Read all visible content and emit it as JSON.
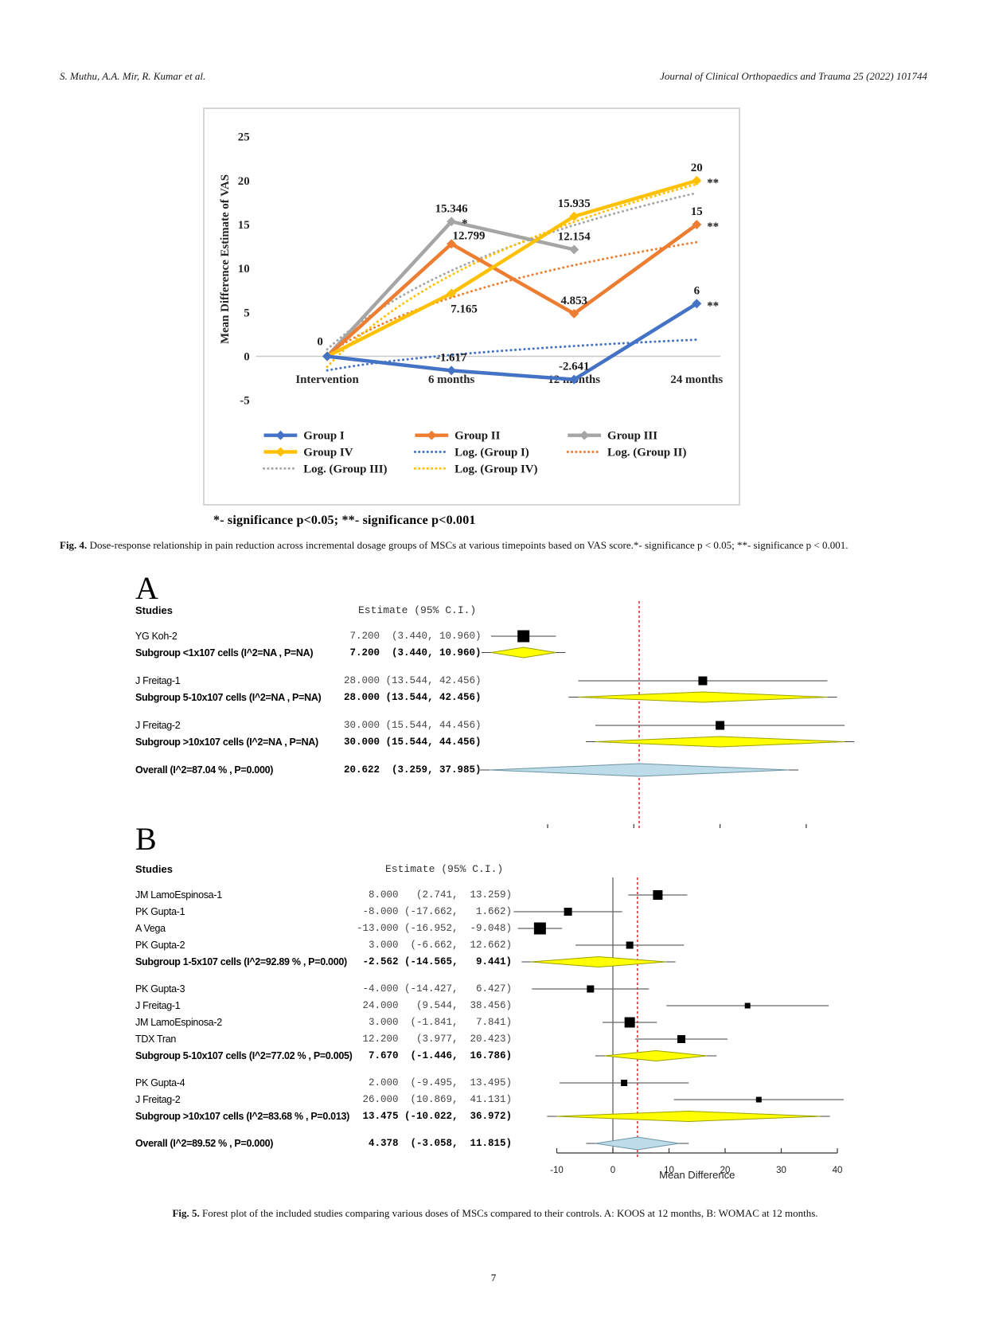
{
  "page": {
    "header_left": "S. Muthu, A.A. Mir, R. Kumar et al.",
    "header_right": "Journal of Clinical Orthopaedics and Trauma 25 (2022) 101744",
    "significance_note": "*- significance p<0.05; **- significance p<0.001",
    "fig4_caption_label": "Fig. 4.",
    "fig4_caption": " Dose-response relationship in pain reduction across incremental dosage groups of MSCs at various timepoints based on VAS score.*- significance p < 0.05; **- significance p < 0.001.",
    "fig5_caption_label": "Fig. 5.",
    "fig5_caption": " Forest plot of the included studies comparing various doses of MSCs compared to their controls. A: KOOS at 12 months, B: WOMAC at 12 months.",
    "page_number": "7"
  },
  "chart_data": [
    {
      "type": "line",
      "title": "",
      "ylabel": "Mean Difference Estimate of VAS",
      "categories": [
        "Intervention",
        "6 months",
        "12 months",
        "24 months"
      ],
      "ylim": [
        -5,
        25
      ],
      "yticks": [
        25,
        20,
        15,
        10,
        5,
        0,
        -5
      ],
      "grid": "zero-line-only",
      "legend_position": "bottom-inside",
      "series": [
        {
          "name": "Group I",
          "color": "#4472C4",
          "dash": false,
          "values": [
            0,
            -1.617,
            -2.641,
            6
          ],
          "point_labels": [
            {
              "text": "0",
              "pos": "above-left"
            },
            {
              "text": "-1.617",
              "pos": "above"
            },
            {
              "text": "-2.641",
              "pos": "above"
            },
            {
              "text": "6",
              "pos": "above",
              "sig": "**"
            }
          ]
        },
        {
          "name": "Group II",
          "color": "#ED7D31",
          "dash": false,
          "values": [
            0,
            12.799,
            4.853,
            15
          ],
          "point_labels": [
            null,
            {
              "text": "12.799",
              "pos": "above-right"
            },
            {
              "text": "4.853",
              "pos": "above"
            },
            {
              "text": "15",
              "pos": "above",
              "sig": "**"
            }
          ]
        },
        {
          "name": "Group III",
          "color": "#A5A5A5",
          "dash": false,
          "values": [
            0,
            15.346,
            12.154,
            null
          ],
          "point_labels": [
            null,
            {
              "text": "15.346",
              "pos": "above",
              "sig": "*"
            },
            {
              "text": "12.154",
              "pos": "above"
            },
            null
          ]
        },
        {
          "name": "Group IV",
          "color": "#FFC000",
          "dash": false,
          "values": [
            0,
            7.165,
            15.935,
            20
          ],
          "point_labels": [
            null,
            {
              "text": "7.165",
              "pos": "below"
            },
            {
              "text": "15.935",
              "pos": "above"
            },
            {
              "text": "20",
              "pos": "above",
              "sig": "**"
            }
          ]
        },
        {
          "name": "Log. (Group I)",
          "color": "#4472C4",
          "dash": true,
          "log_fit": {
            "a": 2.52,
            "b": -1.6
          }
        },
        {
          "name": "Log. (Group II)",
          "color": "#ED7D31",
          "dash": true,
          "log_fit": {
            "a": 9.16,
            "b": 0.3
          }
        },
        {
          "name": "Log. (Group III)",
          "color": "#A5A5A5",
          "dash": true,
          "log_fit": {
            "a": 12.84,
            "b": 0.8
          }
        },
        {
          "name": "Log. (Group IV)",
          "color": "#FFC000",
          "dash": true,
          "log_fit": {
            "a": 15.0,
            "b": -1.2
          }
        }
      ],
      "legend_rows": [
        [
          "Group I",
          "Group II",
          "Group III"
        ],
        [
          "Group IV",
          "Log. (Group I)",
          "Log. (Group II)"
        ],
        [
          "Log. (Group III)",
          "Log. (Group IV)"
        ]
      ]
    },
    {
      "type": "forest",
      "panel_label": "A",
      "col_studies": "Studies",
      "col_estimate": "Estimate (95% C.I.)",
      "xlabel": "Mean Difference",
      "xticks": [
        10,
        20,
        30,
        40
      ],
      "ref_line": 20.622,
      "zero_line": false,
      "rows": [
        {
          "kind": "study",
          "label": "YG Koh-2",
          "est": 7.2,
          "lo": 3.44,
          "hi": 10.96,
          "size": 15,
          "text": " 7.200  (3.440, 10.960)"
        },
        {
          "kind": "subgroup",
          "label": "Subgroup <1x107 cells (I^2=NA , P=NA)",
          "est": 7.2,
          "lo": 3.44,
          "hi": 10.96,
          "text": " 7.200  (3.440, 10.960)"
        },
        {
          "kind": "spacer"
        },
        {
          "kind": "study",
          "label": "J Freitag-1",
          "est": 28.0,
          "lo": 13.544,
          "hi": 42.456,
          "size": 11,
          "text": "28.000 (13.544, 42.456)"
        },
        {
          "kind": "subgroup",
          "label": "Subgroup 5-10x107 cells (I^2=NA , P=NA)",
          "est": 28.0,
          "lo": 13.544,
          "hi": 42.456,
          "text": "28.000 (13.544, 42.456)"
        },
        {
          "kind": "spacer"
        },
        {
          "kind": "study",
          "label": "J Freitag-2",
          "est": 30.0,
          "lo": 15.544,
          "hi": 44.456,
          "size": 11,
          "text": "30.000 (15.544, 44.456)"
        },
        {
          "kind": "subgroup",
          "label": "Subgroup >10x107 cells (I^2=NA , P=NA)",
          "est": 30.0,
          "lo": 15.544,
          "hi": 44.456,
          "text": "30.000 (15.544, 44.456)"
        },
        {
          "kind": "spacer"
        },
        {
          "kind": "overall",
          "label": "Overall (I^2=87.04 % , P=0.000)",
          "est": 20.622,
          "lo": 3.259,
          "hi": 37.985,
          "text": "20.622  (3.259, 37.985)"
        }
      ]
    },
    {
      "type": "forest",
      "panel_label": "B",
      "col_studies": "Studies",
      "col_estimate": "Estimate (95% C.I.)",
      "xlabel": "Mean Difference",
      "xticks": [
        -10,
        0,
        10,
        20,
        30,
        40
      ],
      "ref_line": 4.378,
      "zero_line": true,
      "rows": [
        {
          "kind": "study",
          "label": "JM LamoEspinosa-1",
          "est": 8.0,
          "lo": 2.741,
          "hi": 13.259,
          "size": 12,
          "text": "  8.000   (2.741,  13.259)"
        },
        {
          "kind": "study",
          "label": "PK Gupta-1",
          "est": -8.0,
          "lo": -17.662,
          "hi": 1.662,
          "size": 10,
          "text": " -8.000 (-17.662,   1.662)"
        },
        {
          "kind": "study",
          "label": "A Vega",
          "est": -13.0,
          "lo": -16.952,
          "hi": -9.048,
          "size": 15,
          "text": "-13.000 (-16.952,  -9.048)"
        },
        {
          "kind": "study",
          "label": "PK Gupta-2",
          "est": 3.0,
          "lo": -6.662,
          "hi": 12.662,
          "size": 9,
          "text": "  3.000  (-6.662,  12.662)"
        },
        {
          "kind": "subgroup",
          "label": "Subgroup 1-5x107 cells (I^2=92.89 % , P=0.000)",
          "est": -2.562,
          "lo": -14.565,
          "hi": 9.441,
          "text": " -2.562 (-14.565,   9.441)"
        },
        {
          "kind": "spacer"
        },
        {
          "kind": "study",
          "label": "PK Gupta-3",
          "est": -4.0,
          "lo": -14.427,
          "hi": 6.427,
          "size": 9,
          "text": " -4.000 (-14.427,   6.427)"
        },
        {
          "kind": "study",
          "label": "J Freitag-1",
          "est": 24.0,
          "lo": 9.544,
          "hi": 38.456,
          "size": 7,
          "text": " 24.000   (9.544,  38.456)"
        },
        {
          "kind": "study",
          "label": "JM LamoEspinosa-2",
          "est": 3.0,
          "lo": -1.841,
          "hi": 7.841,
          "size": 13,
          "text": "  3.000  (-1.841,   7.841)"
        },
        {
          "kind": "study",
          "label": "TDX Tran",
          "est": 12.2,
          "lo": 3.977,
          "hi": 20.423,
          "size": 10,
          "text": " 12.200   (3.977,  20.423)"
        },
        {
          "kind": "subgroup",
          "label": "Subgroup 5-10x107 cells (I^2=77.02 % , P=0.005)",
          "est": 7.67,
          "lo": -1.446,
          "hi": 16.786,
          "text": "  7.670  (-1.446,  16.786)"
        },
        {
          "kind": "spacer"
        },
        {
          "kind": "study",
          "label": "PK Gupta-4",
          "est": 2.0,
          "lo": -9.495,
          "hi": 13.495,
          "size": 8,
          "text": "  2.000  (-9.495,  13.495)"
        },
        {
          "kind": "study",
          "label": "J Freitag-2",
          "est": 26.0,
          "lo": 10.869,
          "hi": 41.131,
          "size": 7,
          "text": " 26.000  (10.869,  41.131)"
        },
        {
          "kind": "subgroup",
          "label": "Subgroup >10x107 cells (I^2=83.68 % , P=0.013)",
          "est": 13.475,
          "lo": -10.022,
          "hi": 36.972,
          "text": " 13.475 (-10.022,  36.972)"
        },
        {
          "kind": "spacer"
        },
        {
          "kind": "overall",
          "label": "Overall (I^2=89.52 % , P=0.000)",
          "est": 4.378,
          "lo": -3.058,
          "hi": 11.815,
          "text": "  4.378  (-3.058,  11.815)"
        }
      ]
    }
  ],
  "colors": {
    "group1": "#4472C4",
    "group2": "#ED7D31",
    "group3": "#A5A5A5",
    "group4": "#FFC000",
    "ref_line_red": "#e03535",
    "subgroup_diamond": "#FFFF00",
    "overall_diamond": "#bcdcea",
    "study_square": "#000000"
  }
}
